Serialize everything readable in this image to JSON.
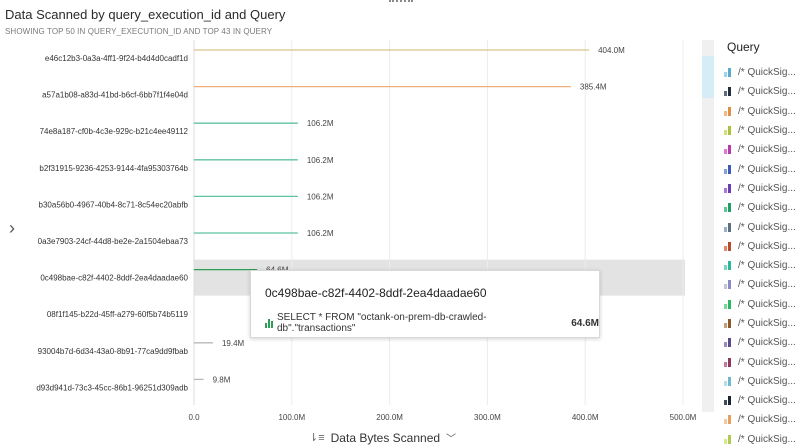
{
  "header": {
    "title": "Data Scanned by query_execution_id and Query",
    "subtitle": "SHOWING TOP 50 IN QUERY_EXECUTION_ID AND TOP 43 IN QUERY"
  },
  "x_axis_title": "Data Bytes Scanned",
  "legend": {
    "title": "Query",
    "item_label": "/* QuickSig...",
    "colors": [
      [
        "#9fd3ea",
        "#5aaad0"
      ],
      [
        "#5d6d7e",
        "#1f2f3f"
      ],
      [
        "#f1b987",
        "#e0913f"
      ],
      [
        "#cde07a",
        "#a9c43a"
      ],
      [
        "#e07ad3",
        "#b93aa8"
      ],
      [
        "#8a9fd6",
        "#3d5ab8"
      ],
      [
        "#a77ad6",
        "#6a3ab8"
      ],
      [
        "#5fc79a",
        "#1f9e62"
      ],
      [
        "#9fb0c4",
        "#5a6e85"
      ],
      [
        "#e08a6a",
        "#b84a2a"
      ],
      [
        "#7ad6c0",
        "#2ab89a"
      ],
      [
        "#c4c4e0",
        "#8a8ac4"
      ],
      [
        "#7ad6a0",
        "#2ab860"
      ],
      [
        "#c4a07a",
        "#8a5a2a"
      ],
      [
        "#9a8ac4",
        "#5a4a8a"
      ],
      [
        "#c47a9a",
        "#8a3a5a"
      ],
      [
        "#b3dfea",
        "#6fb9cf"
      ],
      [
        "#3d4d5e",
        "#1a2530"
      ],
      [
        "#f5c8a0",
        "#e8a060"
      ],
      [
        "#d5e890",
        "#b0cc50"
      ]
    ]
  },
  "tooltip": {
    "title": "0c498bae-c82f-4402-8ddf-2ea4daadae60",
    "query": "SELECT * FROM \"octank-on-prem-db-crawled-db\".\"transactions\"",
    "value": "64.6M"
  },
  "chart_data": {
    "type": "bar",
    "orientation": "horizontal",
    "title": "Data Scanned by query_execution_id and Query",
    "xlabel": "Data Bytes Scanned",
    "xlim": [
      0,
      500
    ],
    "x_unit": "M",
    "x_ticks": [
      "0.0",
      "100.0M",
      "200.0M",
      "300.0M",
      "400.0M",
      "500.0M"
    ],
    "grid": true,
    "highlighted_category": "0c498bae-c82f-4402-8ddf-2ea4daadae60",
    "categories": [
      "e46c12b3-0a3a-4ff1-9f24-b4d4d0cadf1d",
      "a57a1b08-a83d-41bd-b6cf-6bb7f1f4e04d",
      "74e8a187-cf0b-4c3e-929c-b21c4ee49112",
      "b2f31915-9236-4253-9144-4fa95303764b",
      "b30a56b0-4967-40b4-8c71-8c54ec20abfb",
      "0a3e7903-24cf-44d8-be2e-2a1504ebaa73",
      "0c498bae-c82f-4402-8ddf-2ea4daadae60",
      "08f1f145-b22d-45ff-a279-60f5b74b5119",
      "93004b7d-6d34-43a0-8b91-77ca9dd9fbab",
      "d93d941d-73c3-45cc-86b1-96251d309adb"
    ],
    "values": [
      404.0,
      385.4,
      106.2,
      106.2,
      106.2,
      106.2,
      64.6,
      null,
      19.4,
      9.8
    ],
    "data_labels": [
      "404.0M",
      "385.4M",
      "106.2M",
      "106.2M",
      "106.2M",
      "106.2M",
      "64.6M",
      "",
      "19.4M",
      "9.8M"
    ],
    "bar_colors": [
      "#d9c38a",
      "#f0b07a",
      "#5ec3a0",
      "#5ec3a0",
      "#5ec3a0",
      "#5ec3a0",
      "#2e9e55",
      "#5ec3a0",
      "#b8b8b8",
      "#b8b8b8"
    ]
  }
}
